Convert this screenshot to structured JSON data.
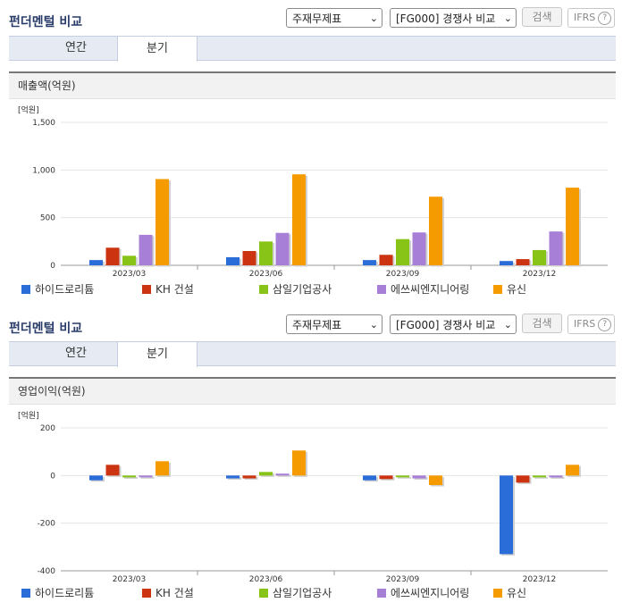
{
  "panels": [
    {
      "title": "펀더멘털 비교",
      "select_statement": "주재무제표",
      "select_compare": "[FG000] 경쟁사 비교",
      "search_label": "검색",
      "ifrs_label": "IFRS",
      "ifrs_help": "?",
      "tabs": [
        {
          "label": "연간"
        },
        {
          "label": "분기"
        }
      ],
      "active_tab": 1,
      "chart_header": "매출액(억원)"
    },
    {
      "title": "펀더멘털 비교",
      "select_statement": "주재무제표",
      "select_compare": "[FG000] 경쟁사 비교",
      "search_label": "검색",
      "ifrs_label": "IFRS",
      "ifrs_help": "?",
      "tabs": [
        {
          "label": "연간"
        },
        {
          "label": "분기"
        }
      ],
      "active_tab": 1,
      "chart_header": "영업이익(억원)"
    }
  ],
  "chart_data": [
    {
      "type": "bar",
      "title": "매출액(억원)",
      "unit_label": "[억원]",
      "categories": [
        "2023/03",
        "2023/06",
        "2023/09",
        "2023/12"
      ],
      "ylim": [
        0,
        1500
      ],
      "yticks": [
        0,
        500,
        1000,
        1500
      ],
      "ytick_labels": [
        "0",
        "500",
        "1,000",
        "1,500"
      ],
      "grid": true,
      "legend": "bottom",
      "series": [
        {
          "name": "하이드로리튬",
          "color": "#2a6dd9",
          "values": [
            55,
            85,
            55,
            45
          ]
        },
        {
          "name": "KH 건설",
          "color": "#cc3311",
          "values": [
            185,
            150,
            110,
            65
          ]
        },
        {
          "name": "삼일기업공사",
          "color": "#88c418",
          "values": [
            100,
            250,
            275,
            160
          ]
        },
        {
          "name": "에쓰씨엔지니어링",
          "color": "#a77fd6",
          "values": [
            320,
            340,
            345,
            355
          ]
        },
        {
          "name": "유신",
          "color": "#f59b00",
          "values": [
            905,
            955,
            720,
            815
          ]
        }
      ]
    },
    {
      "type": "bar",
      "title": "영업이익(억원)",
      "unit_label": "[억원]",
      "categories": [
        "2023/03",
        "2023/06",
        "2023/09",
        "2023/12"
      ],
      "ylim": [
        -400,
        200
      ],
      "yticks": [
        -400,
        -200,
        0,
        200
      ],
      "ytick_labels": [
        "-400",
        "-200",
        "0",
        "200"
      ],
      "grid": true,
      "legend": "bottom",
      "series": [
        {
          "name": "하이드로리튬",
          "color": "#2a6dd9",
          "values": [
            -20,
            -12,
            -20,
            -330
          ]
        },
        {
          "name": "KH 건설",
          "color": "#cc3311",
          "values": [
            45,
            -12,
            -15,
            -30
          ]
        },
        {
          "name": "삼일기업공사",
          "color": "#88c418",
          "values": [
            -8,
            15,
            -5,
            0
          ]
        },
        {
          "name": "에쓰씨엔지니어링",
          "color": "#a77fd6",
          "values": [
            0,
            8,
            -12,
            -8
          ]
        },
        {
          "name": "유신",
          "color": "#f59b00",
          "values": [
            60,
            105,
            -40,
            45
          ]
        }
      ]
    }
  ]
}
